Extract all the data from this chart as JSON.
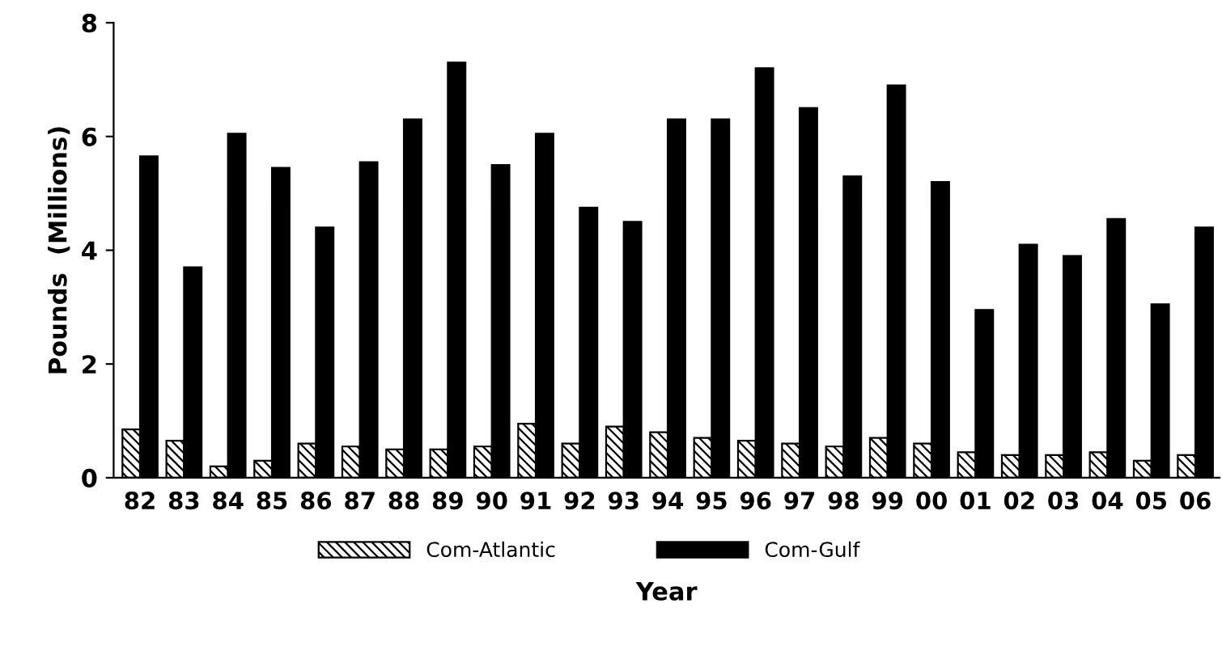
{
  "chart_data": {
    "type": "bar",
    "xlabel": "Year",
    "ylabel": "Pounds  (Millions)",
    "categories": [
      "82",
      "83",
      "84",
      "85",
      "86",
      "87",
      "88",
      "89",
      "90",
      "91",
      "92",
      "93",
      "94",
      "95",
      "96",
      "97",
      "98",
      "99",
      "00",
      "01",
      "02",
      "03",
      "04",
      "05",
      "06"
    ],
    "series": [
      {
        "name": "Com-Atlantic",
        "color": "#000000",
        "values": [
          0.85,
          0.65,
          0.2,
          0.3,
          0.6,
          0.55,
          0.5,
          0.5,
          0.55,
          0.95,
          0.6,
          0.9,
          0.8,
          0.7,
          0.65,
          0.6,
          0.55,
          0.7,
          0.6,
          0.45,
          0.4,
          0.4,
          0.45,
          0.3,
          0.4
        ]
      },
      {
        "name": "Com-Gulf",
        "color": "#000000",
        "values": [
          5.65,
          3.7,
          6.05,
          5.45,
          4.4,
          5.55,
          6.3,
          7.3,
          5.5,
          6.05,
          4.75,
          4.5,
          6.3,
          6.3,
          7.2,
          6.5,
          5.3,
          6.9,
          5.2,
          2.95,
          4.1,
          3.9,
          4.55,
          3.05,
          4.4
        ]
      }
    ],
    "ylim": [
      0,
      8
    ],
    "yticks": [
      0,
      2,
      4,
      6,
      8
    ],
    "grid": false,
    "legend": "bottom"
  }
}
